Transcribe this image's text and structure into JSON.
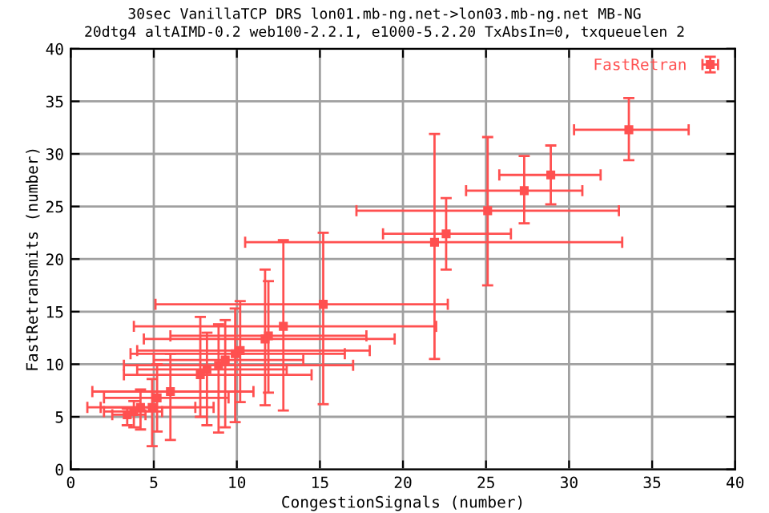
{
  "chart_data": {
    "type": "scatter",
    "title": "30sec VanillaTCP DRS lon01.mb-ng.net->lon03.mb-ng.net MB-NG",
    "subtitle": "20dtg4 altAIMD-0.2 web100-2.2.1, e1000-5.2.20 TxAbsIn=0, txqueuelen 2",
    "xlabel": "CongestionSignals (number)",
    "ylabel": "FastRetransmits (number)",
    "xlim": [
      0,
      40
    ],
    "ylim": [
      0,
      40
    ],
    "xticks": [
      0,
      5,
      10,
      15,
      20,
      25,
      30,
      35,
      40
    ],
    "yticks": [
      0,
      5,
      10,
      15,
      20,
      25,
      30,
      35,
      40
    ],
    "grid": true,
    "legend": "top right",
    "marker": "square",
    "series": [
      {
        "name": "FastRetran",
        "color": "#ff5050",
        "x": [
          33.6,
          28.9,
          27.3,
          25.1,
          22.6,
          21.9,
          15.2,
          12.8,
          11.9,
          11.7,
          10.2,
          9.9,
          9.3,
          8.9,
          8.2,
          7.8,
          6.0,
          5.2,
          4.9,
          4.2,
          3.8,
          3.4
        ],
        "values": [
          32.3,
          28.0,
          26.5,
          24.6,
          22.4,
          21.6,
          15.7,
          13.6,
          12.7,
          12.4,
          11.3,
          11.0,
          10.4,
          9.9,
          9.5,
          9.0,
          7.4,
          6.8,
          5.9,
          5.9,
          5.5,
          5.2
        ],
        "xerrors": [
          [
            30.3,
            37.2
          ],
          [
            25.8,
            31.9
          ],
          [
            23.8,
            30.8
          ],
          [
            17.2,
            33.0
          ],
          [
            18.8,
            26.5
          ],
          [
            10.5,
            33.2
          ],
          [
            5.1,
            22.7
          ],
          [
            3.8,
            22.0
          ],
          [
            6.0,
            17.8
          ],
          [
            4.4,
            19.5
          ],
          [
            4.0,
            18.0
          ],
          [
            3.6,
            16.5
          ],
          [
            5.0,
            14.0
          ],
          [
            3.2,
            17.0
          ],
          [
            4.0,
            13.0
          ],
          [
            3.2,
            14.5
          ],
          [
            1.3,
            11.0
          ],
          [
            2.0,
            9.5
          ],
          [
            1.8,
            8.6
          ],
          [
            1.0,
            7.5
          ],
          [
            2.0,
            5.5
          ],
          [
            2.5,
            4.5
          ]
        ],
        "errors": [
          [
            29.4,
            35.3
          ],
          [
            25.2,
            30.8
          ],
          [
            23.4,
            29.8
          ],
          [
            17.5,
            31.6
          ],
          [
            19.0,
            25.8
          ],
          [
            10.5,
            31.9
          ],
          [
            6.2,
            22.5
          ],
          [
            5.6,
            21.8
          ],
          [
            7.3,
            17.9
          ],
          [
            6.1,
            19.0
          ],
          [
            6.4,
            16.0
          ],
          [
            4.5,
            15.3
          ],
          [
            4.0,
            14.2
          ],
          [
            3.5,
            13.8
          ],
          [
            4.2,
            13.0
          ],
          [
            5.0,
            14.5
          ],
          [
            2.8,
            11.0
          ],
          [
            3.6,
            10.0
          ],
          [
            2.2,
            8.6
          ],
          [
            3.8,
            7.6
          ],
          [
            4.0,
            6.5
          ],
          [
            4.2,
            5.8
          ]
        ]
      }
    ]
  }
}
